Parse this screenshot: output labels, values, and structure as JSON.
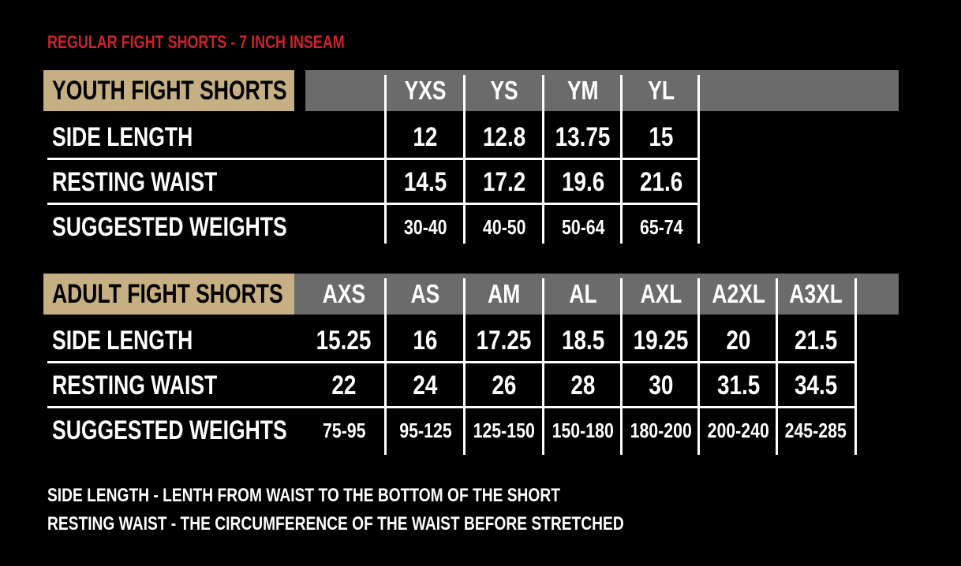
{
  "title": "REGULAR FIGHT SHORTS - 7 INCH INSEAM",
  "youth": {
    "label": "YOUTH FIGHT SHORTS",
    "sizes": [
      "YXS",
      "YS",
      "YM",
      "YL"
    ],
    "rows": [
      {
        "label": "SIDE LENGTH",
        "values": [
          "12",
          "12.8",
          "13.75",
          "15"
        ]
      },
      {
        "label": "RESTING WAIST",
        "values": [
          "14.5",
          "17.2",
          "19.6",
          "21.6"
        ]
      },
      {
        "label": "SUGGESTED WEIGHTS",
        "values": [
          "30-40",
          "40-50",
          "50-64",
          "65-74"
        ]
      }
    ]
  },
  "adult": {
    "label": "ADULT FIGHT SHORTS",
    "sizes": [
      "AXS",
      "AS",
      "AM",
      "AL",
      "AXL",
      "A2XL",
      "A3XL"
    ],
    "rows": [
      {
        "label": "SIDE LENGTH",
        "values": [
          "15.25",
          "16",
          "17.25",
          "18.5",
          "19.25",
          "20",
          "21.5"
        ]
      },
      {
        "label": "RESTING WAIST",
        "values": [
          "22",
          "24",
          "26",
          "28",
          "30",
          "31.5",
          "34.5"
        ]
      },
      {
        "label": "SUGGESTED WEIGHTS",
        "values": [
          "75-95",
          "95-125",
          "125-150",
          "150-180",
          "180-200",
          "200-240",
          "245-285"
        ]
      }
    ]
  },
  "notes": [
    "SIDE LENGTH - LENTH FROM WAIST TO THE BOTTOM OF THE SHORT",
    "RESTING WAIST -  THE CIRCUMFERENCE OF THE WAIST BEFORE STRETCHED"
  ],
  "colors": {
    "title": "#c8232b",
    "label_box": "#c6b083",
    "header_band": "#6b6b6b",
    "background": "#000000"
  }
}
